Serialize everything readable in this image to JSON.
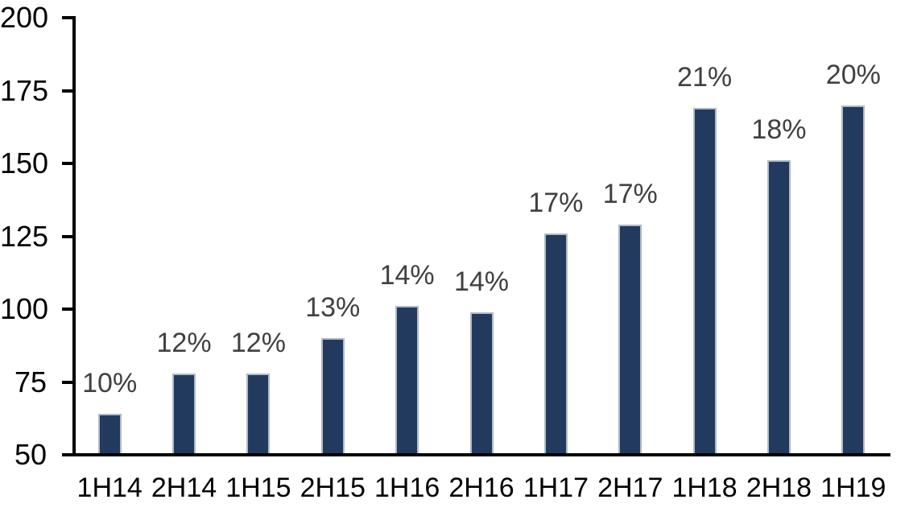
{
  "chart_data": {
    "type": "bar",
    "title": "",
    "xlabel": "",
    "ylabel": "",
    "categories": [
      "1H14",
      "2H14",
      "1H15",
      "2H15",
      "1H16",
      "2H16",
      "1H17",
      "2H17",
      "1H18",
      "2H18",
      "1H19"
    ],
    "values": [
      64,
      78,
      78,
      90,
      101,
      99,
      126,
      129,
      169,
      151,
      170
    ],
    "bar_labels": [
      "10%",
      "12%",
      "12%",
      "13%",
      "14%",
      "14%",
      "17%",
      "17%",
      "21%",
      "18%",
      "20%"
    ],
    "ylim": [
      50,
      200
    ],
    "yticks": [
      50,
      75,
      100,
      125,
      150,
      175,
      200
    ],
    "ytick_labels": [
      "50",
      "75",
      "100",
      "125",
      "150",
      "175",
      "200"
    ],
    "grid": false,
    "legend": false,
    "colors": {
      "bar_fill": "#223a5e",
      "bar_border": "#b1bac8",
      "bar_label_text": "#404040",
      "axis_text": "#000000",
      "axis_line": "#000000",
      "background": "#ffffff"
    }
  }
}
